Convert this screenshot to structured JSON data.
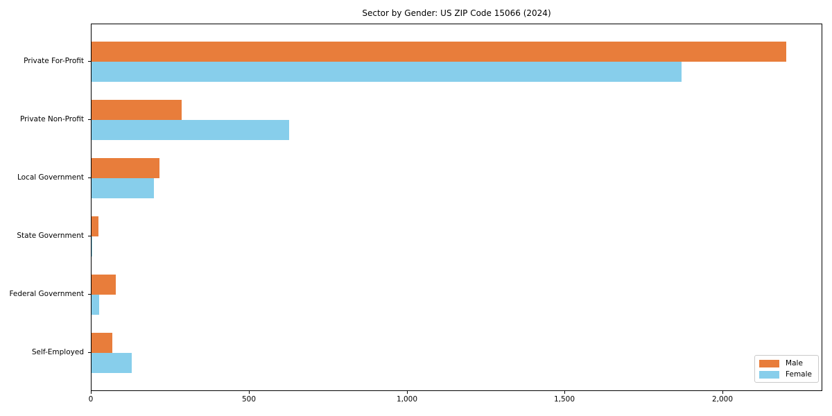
{
  "title": "Sector by Gender: US ZIP Code 15066 (2024)",
  "chart_data": {
    "type": "bar",
    "orientation": "horizontal",
    "title": "Sector by Gender: US ZIP Code 15066 (2024)",
    "xlabel": "",
    "ylabel": "",
    "categories": [
      "Private For-Profit",
      "Private Non-Profit",
      "Local Government",
      "State Government",
      "Federal Government",
      "Self-Employed"
    ],
    "series": [
      {
        "name": "Male",
        "color": "#e87d3b",
        "values": [
          2204,
          286,
          215,
          22,
          77,
          66
        ]
      },
      {
        "name": "Female",
        "color": "#87ceeb",
        "values": [
          1872,
          626,
          198,
          3,
          24,
          128
        ]
      }
    ],
    "xlim": [
      0,
      2316
    ],
    "x_ticks": [
      {
        "value": 0,
        "label": "0"
      },
      {
        "value": 500,
        "label": "500"
      },
      {
        "value": 1000,
        "label": "1,000"
      },
      {
        "value": 1500,
        "label": "1,500"
      },
      {
        "value": 2000,
        "label": "2,000"
      }
    ],
    "grid": false,
    "legend_position": "lower right",
    "axis_color": "#000000",
    "background_color": "#ffffff"
  }
}
